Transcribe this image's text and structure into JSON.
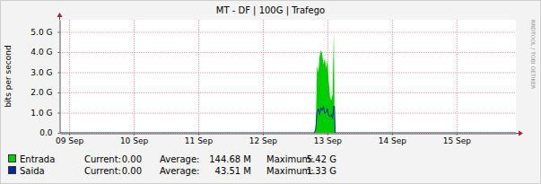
{
  "chart_data": {
    "type": "line",
    "title": "MT - DF | 100G | Trafego",
    "y_label": "bits per second",
    "annotations": [
      "RRDTOOL / TOBI OETIKER"
    ],
    "x": [
      8.86,
      12.8,
      12.82,
      12.84,
      12.86,
      12.88,
      12.9,
      12.92,
      12.94,
      12.96,
      12.98,
      13.0,
      13.02,
      13.04,
      13.06,
      13.08,
      13.1,
      13.11,
      13.12,
      15.92
    ],
    "xlim": [
      8.86,
      15.92
    ],
    "xticks": [
      {
        "value": 9,
        "label": "09 Sep"
      },
      {
        "value": 10,
        "label": "10 Sep"
      },
      {
        "value": 11,
        "label": "11 Sep"
      },
      {
        "value": 12,
        "label": "12 Sep"
      },
      {
        "value": 13,
        "label": "13 Sep"
      },
      {
        "value": 14,
        "label": "14 Sep"
      },
      {
        "value": 15,
        "label": "15 Sep"
      }
    ],
    "ylim": [
      0,
      5600000000
    ],
    "yticks": [
      {
        "value": 0,
        "label": "0.0"
      },
      {
        "value": 1000000000,
        "label": "1.0 G"
      },
      {
        "value": 2000000000,
        "label": "2.0 G"
      },
      {
        "value": 3000000000,
        "label": "3.0 G"
      },
      {
        "value": 4000000000,
        "label": "4.0 G"
      },
      {
        "value": 5000000000,
        "label": "5.0 G"
      }
    ],
    "grid": true,
    "series": [
      {
        "name": "Entrada",
        "type": "area",
        "color": "#00cc00",
        "values": [
          0,
          0,
          300000000,
          3300000000,
          3000000000,
          3800000000,
          4100000000,
          3900000000,
          3400000000,
          3700000000,
          3200000000,
          3600000000,
          2600000000,
          1800000000,
          1600000000,
          1900000000,
          5000000000,
          1200000000,
          0,
          0
        ],
        "stats": [
          {
            "label": "Current:",
            "value": 0,
            "value_label": "0.00"
          },
          {
            "label": "Average:",
            "value": 144680000,
            "value_label": "144.68 M"
          },
          {
            "label": "Maximum:",
            "value": 5420000000,
            "value_label": "5.42 G"
          }
        ]
      },
      {
        "name": "Saida",
        "type": "line",
        "color": "#002a97",
        "values": [
          0,
          0,
          200000000,
          1000000000,
          1200000000,
          900000000,
          1250000000,
          1100000000,
          1300000000,
          950000000,
          1000000000,
          1200000000,
          850000000,
          800000000,
          900000000,
          700000000,
          1330000000,
          1300000000,
          0,
          0
        ],
        "stats": [
          {
            "label": "Current:",
            "value": 0,
            "value_label": "0.00"
          },
          {
            "label": "Average:",
            "value": 43510000,
            "value_label": "43.51 M"
          },
          {
            "label": "Maximum:",
            "value": 1330000000,
            "value_label": "1.33 G"
          }
        ]
      }
    ]
  }
}
